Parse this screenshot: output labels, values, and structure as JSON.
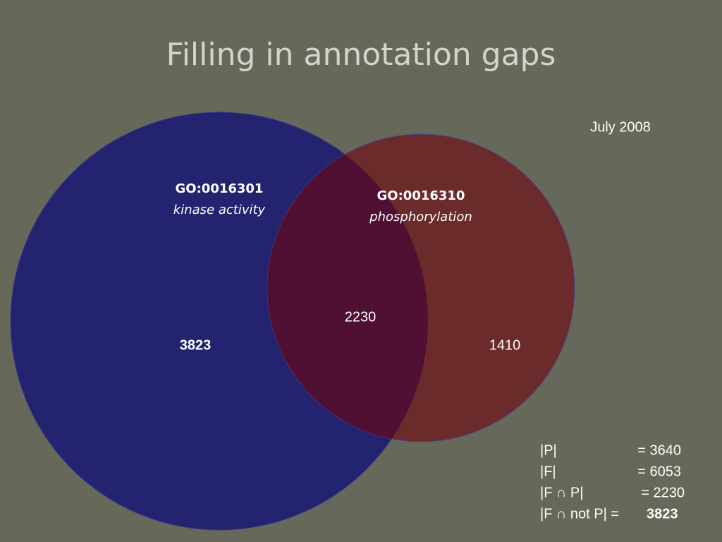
{
  "title": "Filling in annotation gaps",
  "date": "July 2008",
  "sets": [
    {
      "id": "GO:0016301",
      "name": "kinase activity",
      "only_count": 3823
    },
    {
      "id": "GO:0016310",
      "name": "phosphorylation",
      "only_count": 1410
    }
  ],
  "intersection_count": 2230,
  "summary": [
    {
      "label": "|P|",
      "value": "= 3640"
    },
    {
      "label": "|F|",
      "value": "= 6053"
    },
    {
      "label": "|F ∩ P|",
      "value": "= 2230"
    },
    {
      "label": "|F ∩ not P| =",
      "value": "3823"
    }
  ]
}
